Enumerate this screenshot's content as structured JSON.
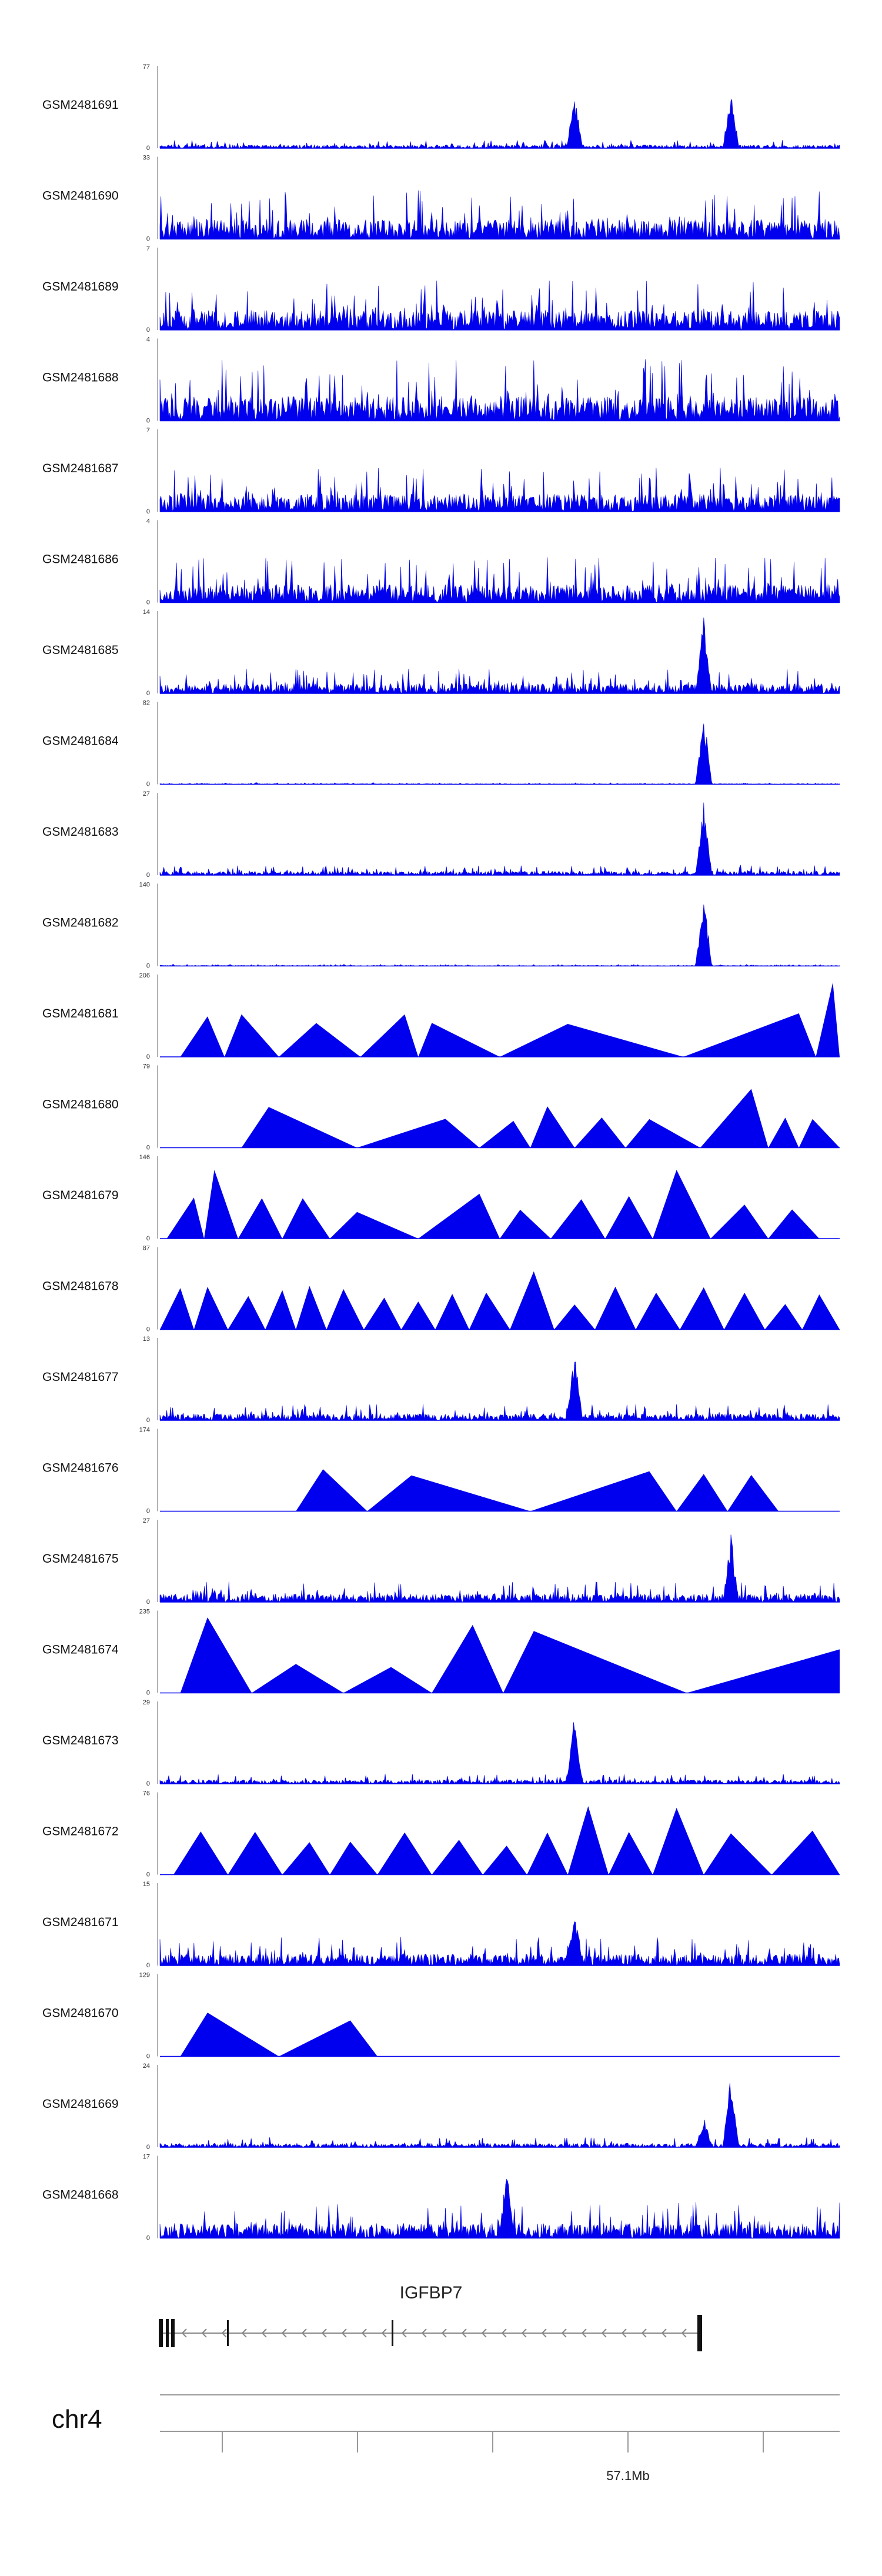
{
  "chart_data": {
    "type": "area",
    "title": "",
    "chromosome": "chr4",
    "gene": "IGFBP7",
    "axis_tick_label": "57.1Mb",
    "axis_tick_position_mb": 57.1,
    "tracks": [
      {
        "name": "GSM2481691",
        "max": 77,
        "min": 0,
        "style": "dense",
        "peaks": [
          [
            0.61,
            0.7
          ],
          [
            0.84,
            0.75
          ]
        ],
        "noise": 0.1
      },
      {
        "name": "GSM2481690",
        "max": 33,
        "min": 0,
        "style": "dense",
        "peaks": [],
        "noise": 0.6
      },
      {
        "name": "GSM2481689",
        "max": 7,
        "min": 0,
        "style": "dense",
        "peaks": [],
        "noise": 0.6
      },
      {
        "name": "GSM2481688",
        "max": 4,
        "min": 0,
        "style": "dense",
        "peaks": [],
        "noise": 0.75
      },
      {
        "name": "GSM2481687",
        "max": 7,
        "min": 0,
        "style": "dense",
        "peaks": [],
        "noise": 0.55
      },
      {
        "name": "GSM2481686",
        "max": 4,
        "min": 0,
        "style": "dense",
        "peaks": [],
        "noise": 0.55
      },
      {
        "name": "GSM2481685",
        "max": 14,
        "min": 0,
        "style": "dense",
        "peaks": [
          [
            0.8,
            0.95
          ]
        ],
        "noise": 0.3
      },
      {
        "name": "GSM2481684",
        "max": 82,
        "min": 0,
        "style": "dense",
        "peaks": [
          [
            0.8,
            0.95
          ]
        ],
        "noise": 0.02
      },
      {
        "name": "GSM2481683",
        "max": 27,
        "min": 0,
        "style": "dense",
        "peaks": [
          [
            0.8,
            0.9
          ]
        ],
        "noise": 0.12
      },
      {
        "name": "GSM2481682",
        "max": 140,
        "min": 0,
        "style": "dense",
        "peaks": [
          [
            0.8,
            0.95
          ]
        ],
        "noise": 0.02
      },
      {
        "name": "GSM2481681",
        "max": 206,
        "min": 0,
        "style": "triangles",
        "apex": [
          0.07,
          0.12,
          0.23,
          0.36,
          0.4,
          0.6,
          0.94,
          0.99
        ]
      },
      {
        "name": "GSM2481680",
        "max": 79,
        "min": 0,
        "style": "triangles",
        "apex": [
          0.16,
          0.42,
          0.52,
          0.57,
          0.65,
          0.72,
          0.87,
          0.92,
          0.96
        ]
      },
      {
        "name": "GSM2481679",
        "max": 146,
        "min": 0,
        "style": "triangles",
        "apex": [
          0.05,
          0.08,
          0.15,
          0.21,
          0.29,
          0.47,
          0.53,
          0.62,
          0.69,
          0.76,
          0.86,
          0.93
        ]
      },
      {
        "name": "GSM2481678",
        "max": 87,
        "min": 0,
        "style": "triangles",
        "apex": [
          0.03,
          0.07,
          0.13,
          0.18,
          0.22,
          0.27,
          0.33,
          0.38,
          0.43,
          0.48,
          0.55,
          0.61,
          0.67,
          0.73,
          0.8,
          0.86,
          0.92,
          0.97
        ]
      },
      {
        "name": "GSM2481677",
        "max": 13,
        "min": 0,
        "style": "dense",
        "peaks": [
          [
            0.61,
            0.85
          ]
        ],
        "noise": 0.2
      },
      {
        "name": "GSM2481676",
        "max": 174,
        "min": 0,
        "style": "triangles",
        "apex": [
          0.24,
          0.37,
          0.72,
          0.8,
          0.87
        ]
      },
      {
        "name": "GSM2481675",
        "max": 27,
        "min": 0,
        "style": "dense",
        "peaks": [
          [
            0.84,
            0.85
          ]
        ],
        "noise": 0.25
      },
      {
        "name": "GSM2481674",
        "max": 235,
        "min": 0,
        "style": "triangles",
        "apex": [
          0.07,
          0.2,
          0.34,
          0.46,
          0.55,
          1.0
        ]
      },
      {
        "name": "GSM2481673",
        "max": 29,
        "min": 0,
        "style": "dense",
        "peaks": [
          [
            0.61,
            0.9
          ]
        ],
        "noise": 0.12
      },
      {
        "name": "GSM2481672",
        "max": 76,
        "min": 0,
        "style": "triangles",
        "apex": [
          0.06,
          0.14,
          0.22,
          0.28,
          0.36,
          0.44,
          0.51,
          0.57,
          0.63,
          0.69,
          0.76,
          0.84,
          0.96
        ]
      },
      {
        "name": "GSM2481671",
        "max": 15,
        "min": 0,
        "style": "dense",
        "peaks": [
          [
            0.61,
            0.8
          ]
        ],
        "noise": 0.35
      },
      {
        "name": "GSM2481670",
        "max": 129,
        "min": 0,
        "style": "triangles",
        "apex": [
          0.07,
          0.28
        ]
      },
      {
        "name": "GSM2481669",
        "max": 24,
        "min": 0,
        "style": "dense",
        "peaks": [
          [
            0.84,
            0.9
          ],
          [
            0.8,
            0.4
          ]
        ],
        "noise": 0.12
      },
      {
        "name": "GSM2481668",
        "max": 17,
        "min": 0,
        "style": "dense",
        "peaks": [
          [
            0.51,
            0.9
          ]
        ],
        "noise": 0.45
      }
    ],
    "colors": {
      "signal": "#0000ee",
      "axis": "#555555",
      "gene": "#222222"
    }
  }
}
